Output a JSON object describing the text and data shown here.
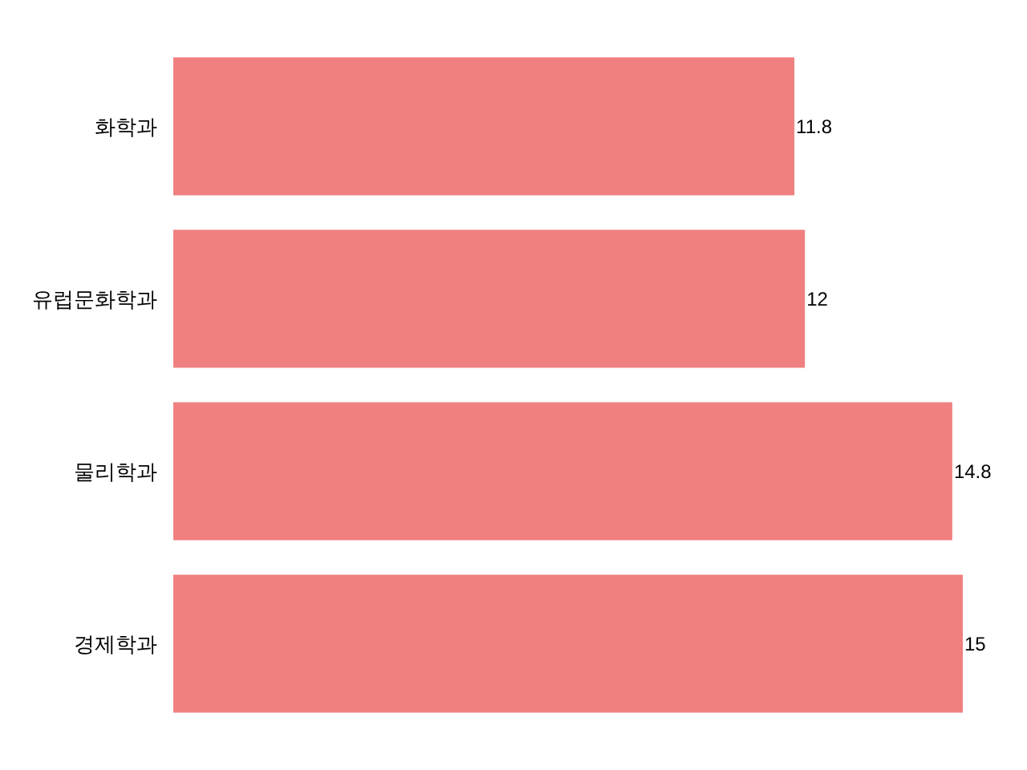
{
  "chart_data": {
    "type": "bar",
    "orientation": "horizontal",
    "categories": [
      "화학과",
      "유럽문화학과",
      "물리학과",
      "경제학과"
    ],
    "values": [
      11.8,
      12,
      14.8,
      15
    ],
    "color": "#f08080",
    "data_labels": true
  }
}
